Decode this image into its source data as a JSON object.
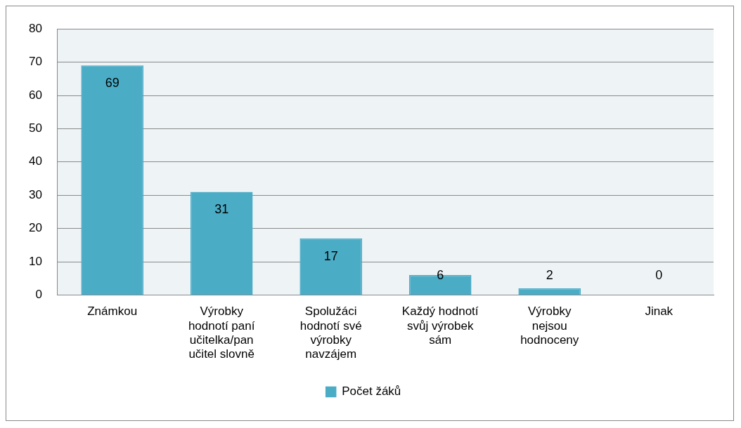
{
  "chart_data": {
    "type": "bar",
    "categories": [
      "Známkou",
      "Výrobky hodnotí paní učitelka/pan učitel slovně",
      "Spolužáci hodnotí své výrobky navzájem",
      "Každý hodnotí svůj výrobek sám",
      "Výrobky nejsou hodnoceny",
      "Jinak"
    ],
    "series": [
      {
        "name": "Počet žáků",
        "color": "#4bacc6",
        "values": [
          69,
          31,
          17,
          6,
          2,
          0
        ]
      }
    ],
    "ylim": [
      0,
      80
    ],
    "yticks": [
      0,
      10,
      20,
      30,
      40,
      50,
      60,
      70,
      80
    ],
    "grid": "y",
    "legend": "bottom",
    "data_labels": true
  }
}
